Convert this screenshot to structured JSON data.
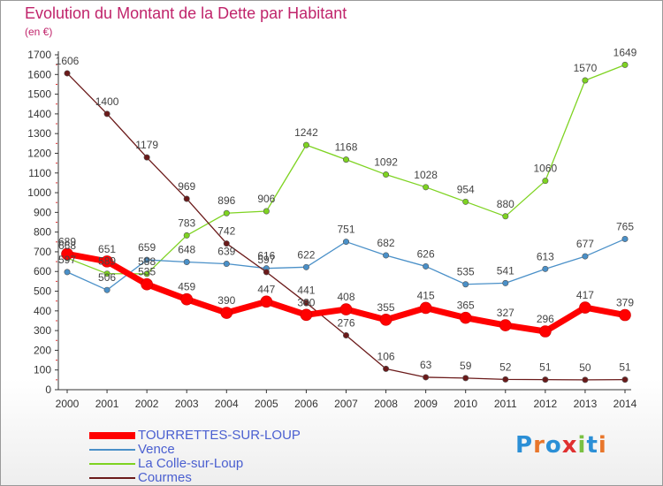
{
  "header": {
    "title": "Evolution du Montant de la Dette par Habitant",
    "subtitle": "(en €)"
  },
  "brand": {
    "logo_text": "Proxiti"
  },
  "colors": {
    "title": "#c0246b",
    "axis": "#333333",
    "grid_marker": "#e03030",
    "legend_text": "#4a5fd0"
  },
  "chart_data": {
    "type": "line",
    "title": "Evolution du Montant de la Dette par Habitant",
    "subtitle": "(en €)",
    "xlabel": "",
    "ylabel": "",
    "ylim": [
      0,
      1700
    ],
    "yticks": [
      0,
      100,
      200,
      300,
      400,
      500,
      600,
      700,
      800,
      900,
      1000,
      1100,
      1200,
      1300,
      1400,
      1500,
      1600,
      1700
    ],
    "x": [
      "2000",
      "2001",
      "2002",
      "2003",
      "2004",
      "2005",
      "2006",
      "2007",
      "2008",
      "2009",
      "2010",
      "2011",
      "2012",
      "2013",
      "2014"
    ],
    "legend_position": "bottom-left",
    "series": [
      {
        "name": "TOURRETTES-SUR-LOUP",
        "color": "#ff0000",
        "values": [
          689,
          651,
          535,
          459,
          390,
          447,
          380,
          408,
          355,
          415,
          365,
          327,
          296,
          417,
          379
        ],
        "labels": [
          "689",
          "651",
          "535",
          "459",
          "390",
          "447",
          "380",
          "408",
          "355",
          "415",
          "365",
          "327",
          "296",
          "417",
          "379"
        ]
      },
      {
        "name": "Vence",
        "color": "#4a90c8",
        "values": [
          597,
          506,
          659,
          648,
          639,
          616,
          622,
          751,
          682,
          626,
          535,
          541,
          613,
          677,
          765
        ],
        "labels": [
          "597",
          "506",
          "659",
          "648",
          "639",
          "616",
          "622",
          "751",
          "682",
          "626",
          "535",
          "541",
          "613",
          "677",
          "765"
        ]
      },
      {
        "name": "La Colle-sur-Loup",
        "color": "#7ed321",
        "values": [
          668,
          589,
          588,
          783,
          896,
          906,
          1242,
          1168,
          1092,
          1028,
          954,
          880,
          1060,
          1570,
          1649
        ],
        "labels": [
          "668",
          "589",
          "588",
          "783",
          "896",
          "906",
          "1242",
          "1168",
          "1092",
          "1028",
          "954",
          "880",
          "1060",
          "1570",
          "1649"
        ]
      },
      {
        "name": "Courmes",
        "color": "#6b1a1a",
        "values": [
          1606,
          1400,
          1179,
          969,
          742,
          597,
          441,
          276,
          106,
          63,
          59,
          52,
          51,
          50,
          51
        ],
        "labels": [
          "1606",
          "1400",
          "1179",
          "969",
          "742",
          "597",
          "441",
          "276",
          "106",
          "63",
          "59",
          "52",
          "51",
          "50",
          "51"
        ]
      }
    ]
  }
}
